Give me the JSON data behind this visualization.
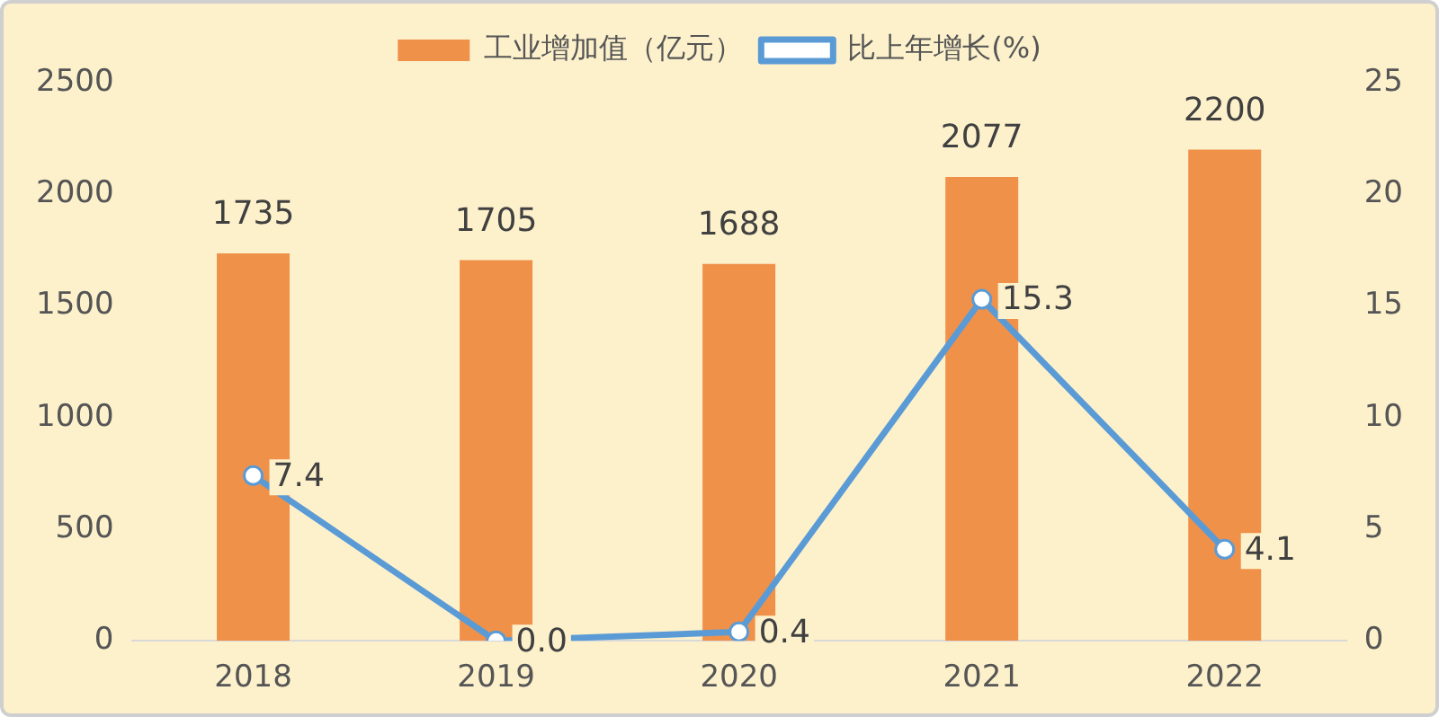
{
  "chart_data": {
    "type": "bar",
    "categories": [
      "2018",
      "2019",
      "2020",
      "2021",
      "2022"
    ],
    "series": [
      {
        "name": "工业增加值（亿元）",
        "color": "#f0914a",
        "values": [
          1735,
          1705,
          1688,
          2077,
          2200
        ],
        "value_labels": [
          "1735",
          "1705",
          "1688",
          "2077",
          "2200"
        ]
      },
      {
        "name": "比上年增长(%)",
        "type": "line",
        "axis": "y2",
        "color": "#5b9bd5",
        "values": [
          7.4,
          0.0,
          0.4,
          15.3,
          4.1
        ],
        "value_labels": [
          "7.4",
          "0.0",
          "0.4",
          "15.3",
          "4.1"
        ],
        "marker": "circle"
      }
    ],
    "ylim": [
      0,
      2500
    ],
    "yticks": [
      0,
      500,
      1000,
      1500,
      2000,
      2500
    ],
    "y2lim": [
      0,
      25
    ],
    "y2ticks": [
      0,
      5,
      10,
      15,
      20,
      25
    ],
    "legend": "top",
    "grid": false
  }
}
